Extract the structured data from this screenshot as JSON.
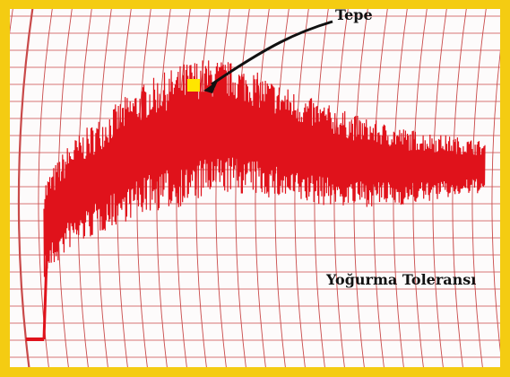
{
  "chart_data": {
    "type": "line",
    "title": "",
    "xlabel": "",
    "ylabel": "",
    "grid": true,
    "annotations": [
      {
        "id": "peak",
        "text": "Tepe"
      },
      {
        "id": "tolerance",
        "text": "Yoğurma Toleransı"
      }
    ],
    "series": [
      {
        "values": [
          0.05,
          0.05,
          0.05,
          0.38,
          0.5,
          0.56,
          0.62,
          0.67,
          0.7,
          0.73,
          0.74,
          0.72,
          0.69,
          0.66,
          0.64,
          0.62,
          0.61,
          0.6,
          0.6,
          0.6,
          0.6
        ]
      }
    ],
    "colors": {
      "trace": "#e0121b",
      "grid": "#c94a4a",
      "peak_marker": "#ffe600",
      "border": "#f4cc12"
    }
  }
}
